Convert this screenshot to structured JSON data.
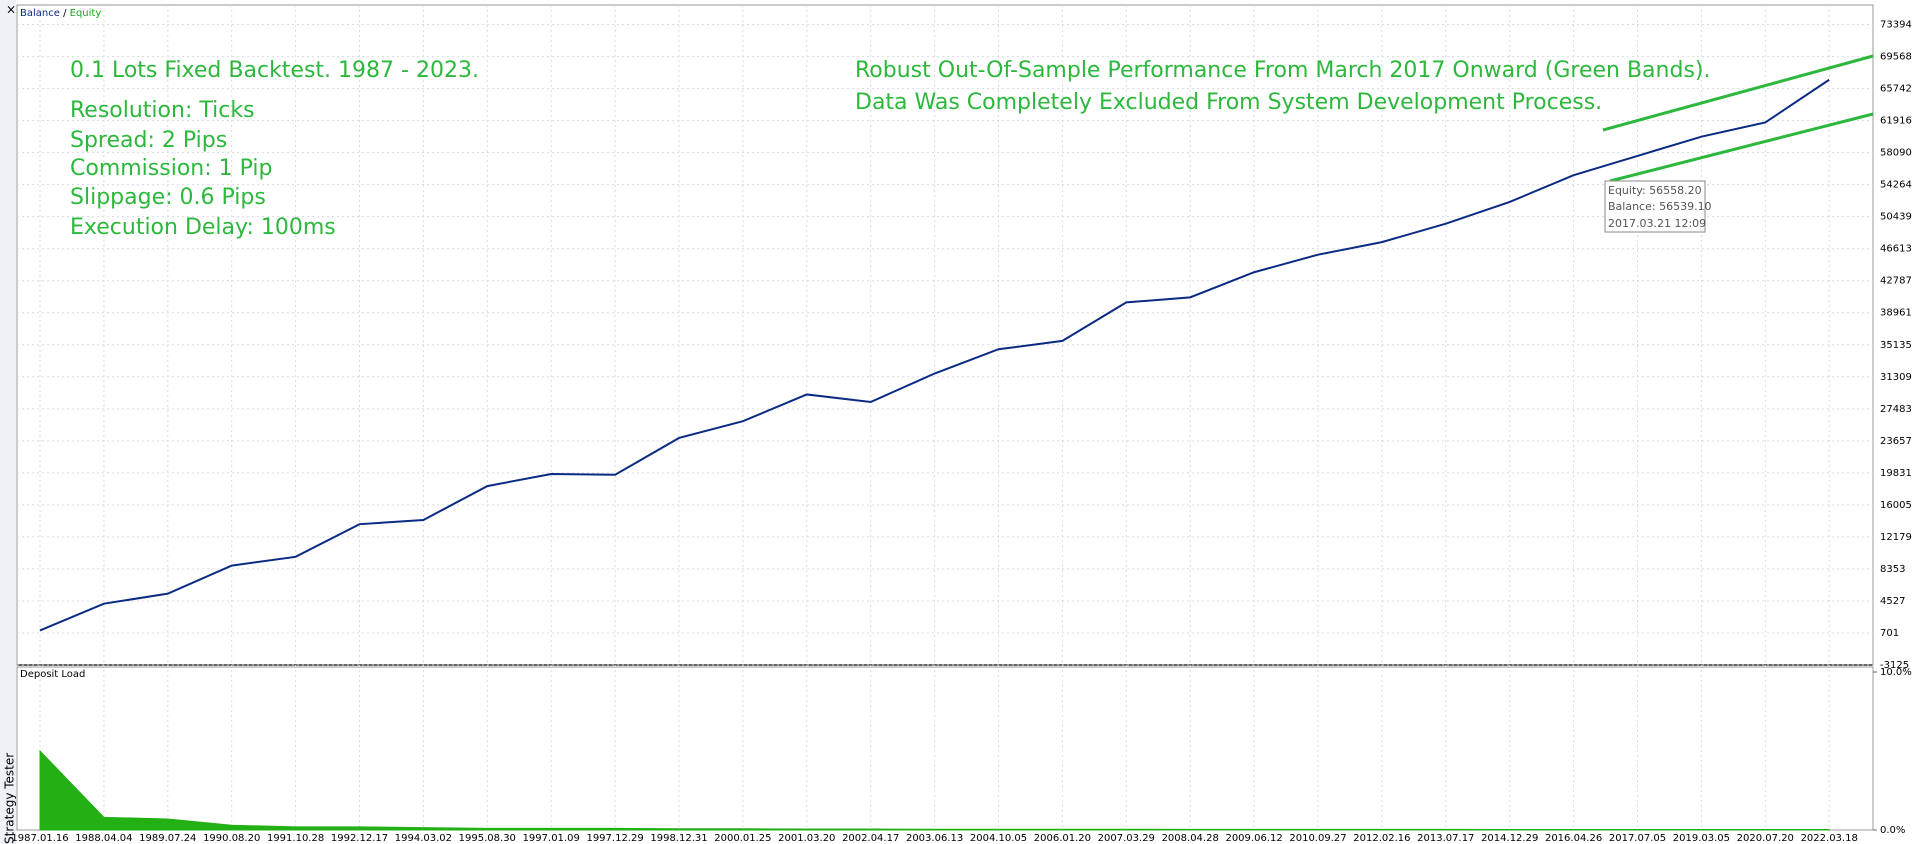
{
  "window": {
    "close": "×",
    "side_tab": "Strategy Tester"
  },
  "chart_data": [
    {
      "type": "line",
      "series": [
        {
          "name": "Balance",
          "color": "#0b2a83",
          "values": [
            1000,
            4200,
            5400,
            8750,
            9800,
            13700,
            14200,
            18250,
            19700,
            19600,
            24000,
            26000,
            29200,
            28300,
            31700,
            34600,
            35600,
            40200,
            40800,
            43800,
            45900,
            47400,
            49600,
            52200,
            55400,
            57700,
            60000,
            61700,
            66800
          ]
        }
      ],
      "legend": {
        "separator": "/",
        "equity": "Equity",
        "equity_color": "#1aa51a"
      },
      "categories": [
        "1987.01.16",
        "1988.04.04",
        "1989.07.24",
        "1990.08.20",
        "1991.10.28",
        "1992.12.17",
        "1994.03.02",
        "1995.08.30",
        "1997.01.09",
        "1997.12.29",
        "1998.12.31",
        "2000.01.25",
        "2001.03.20",
        "2002.04.17",
        "2003.06.13",
        "2004.10.05",
        "2006.01.20",
        "2007.03.29",
        "2008.04.28",
        "2009.06.12",
        "2010.09.27",
        "2012.02.16",
        "2013.07.17",
        "2014.12.29",
        "2016.04.26",
        "2017.07.05",
        "2019.03.05",
        "2020.07.20",
        "2022.03.18"
      ],
      "ylim": [
        -3125,
        75730
      ],
      "yticks": [
        -3125,
        701,
        4527,
        8353,
        12179,
        16005,
        19831,
        23657,
        27483,
        31309,
        35135,
        38961,
        42787,
        46613,
        50439,
        54264,
        58090,
        61916,
        65742,
        69568,
        73394
      ],
      "grid": true,
      "annotations": [
        "0.1 Lots Fixed Backtest. 1987 - 2023.",
        "Resolution: Ticks",
        "Spread: 2 Pips",
        "Commission: 1 Pip",
        "Slippage: 0.6 Pips",
        "Execution Delay: 100ms",
        "Robust Out-Of-Sample Performance From March 2017 Onward (Green Bands).",
        "Data Was Completely Excluded From System Development Process."
      ],
      "tooltip": [
        "Equity: 56558.20",
        "Balance: 56539.10",
        "2017.03.21 12:09"
      ]
    },
    {
      "type": "area",
      "title": "Deposit Load",
      "color": "#22b014",
      "values": [
        5,
        0.8,
        0.7,
        0.3,
        0.2,
        0.2,
        0.15,
        0.1,
        0.1,
        0.1,
        0.08,
        0.08,
        0.06,
        0.06,
        0.05,
        0.05,
        0.05,
        0.05,
        0.04,
        0.04,
        0.04,
        0.04,
        0.04,
        0.03,
        0.03,
        0.03,
        0.03,
        0.03,
        0.03
      ],
      "ylim": [
        0,
        10
      ],
      "yticks": [
        {
          "value": 10,
          "label": "10.0%"
        },
        {
          "value": 0,
          "label": "0.0%"
        }
      ]
    }
  ]
}
